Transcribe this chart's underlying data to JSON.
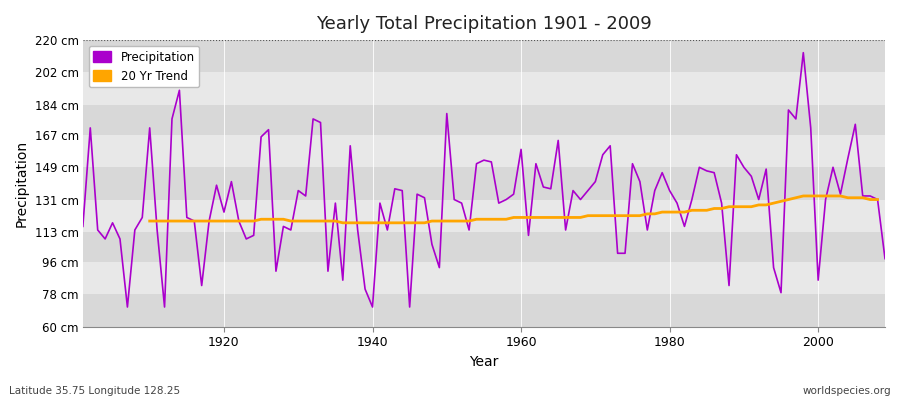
{
  "title": "Yearly Total Precipitation 1901 - 2009",
  "xlabel": "Year",
  "ylabel": "Precipitation",
  "subtitle_left": "Latitude 35.75 Longitude 128.25",
  "subtitle_right": "worldspecies.org",
  "ylim": [
    60,
    220
  ],
  "xlim": [
    1901,
    2009
  ],
  "yticks": [
    60,
    78,
    96,
    113,
    131,
    149,
    167,
    184,
    202,
    220
  ],
  "ytick_labels": [
    "60 cm",
    "78 cm",
    "96 cm",
    "113 cm",
    "131 cm",
    "149 cm",
    "167 cm",
    "184 cm",
    "202 cm",
    "220 cm"
  ],
  "fig_bg_color": "#ffffff",
  "plot_bg_color": "#e0e0e0",
  "band_colors": [
    "#d8d8d8",
    "#e8e8e8"
  ],
  "precip_color": "#aa00cc",
  "trend_color": "#FFA500",
  "precip_linewidth": 1.2,
  "trend_linewidth": 2.0,
  "years": [
    1901,
    1902,
    1903,
    1904,
    1905,
    1906,
    1907,
    1908,
    1909,
    1910,
    1911,
    1912,
    1913,
    1914,
    1915,
    1916,
    1917,
    1918,
    1919,
    1920,
    1921,
    1922,
    1923,
    1924,
    1925,
    1926,
    1927,
    1928,
    1929,
    1930,
    1931,
    1932,
    1933,
    1934,
    1935,
    1936,
    1937,
    1938,
    1939,
    1940,
    1941,
    1942,
    1943,
    1944,
    1945,
    1946,
    1947,
    1948,
    1949,
    1950,
    1951,
    1952,
    1953,
    1954,
    1955,
    1956,
    1957,
    1958,
    1959,
    1960,
    1961,
    1962,
    1963,
    1964,
    1965,
    1966,
    1967,
    1968,
    1969,
    1970,
    1971,
    1972,
    1973,
    1974,
    1975,
    1976,
    1977,
    1978,
    1979,
    1980,
    1981,
    1982,
    1983,
    1984,
    1985,
    1986,
    1987,
    1988,
    1989,
    1990,
    1991,
    1992,
    1993,
    1994,
    1995,
    1996,
    1997,
    1998,
    1999,
    2000,
    2001,
    2002,
    2003,
    2004,
    2005,
    2006,
    2007,
    2008,
    2009
  ],
  "precipitation": [
    116,
    171,
    114,
    109,
    118,
    109,
    71,
    114,
    121,
    171,
    114,
    71,
    176,
    192,
    121,
    119,
    83,
    119,
    139,
    124,
    141,
    119,
    109,
    111,
    166,
    170,
    91,
    116,
    114,
    136,
    133,
    176,
    174,
    91,
    129,
    86,
    161,
    114,
    81,
    71,
    129,
    114,
    137,
    136,
    71,
    134,
    132,
    106,
    93,
    179,
    131,
    129,
    114,
    151,
    153,
    152,
    129,
    131,
    134,
    159,
    111,
    151,
    138,
    137,
    164,
    114,
    136,
    131,
    136,
    141,
    156,
    161,
    101,
    101,
    151,
    141,
    114,
    136,
    146,
    136,
    129,
    116,
    131,
    149,
    147,
    146,
    129,
    83,
    156,
    149,
    144,
    131,
    148,
    93,
    79,
    181,
    176,
    213,
    171,
    86,
    131,
    149,
    134,
    154,
    173,
    133,
    133,
    131,
    98
  ],
  "trend": [
    null,
    null,
    null,
    null,
    null,
    null,
    null,
    null,
    null,
    119,
    119,
    119,
    119,
    119,
    119,
    119,
    119,
    119,
    119,
    119,
    119,
    119,
    119,
    119,
    120,
    120,
    120,
    120,
    119,
    119,
    119,
    119,
    119,
    119,
    119,
    118,
    118,
    118,
    118,
    118,
    118,
    118,
    118,
    118,
    118,
    118,
    118,
    119,
    119,
    119,
    119,
    119,
    119,
    120,
    120,
    120,
    120,
    120,
    121,
    121,
    121,
    121,
    121,
    121,
    121,
    121,
    121,
    121,
    122,
    122,
    122,
    122,
    122,
    122,
    122,
    122,
    123,
    123,
    124,
    124,
    124,
    124,
    125,
    125,
    125,
    126,
    126,
    127,
    127,
    127,
    127,
    128,
    128,
    129,
    130,
    131,
    132,
    133,
    133,
    133,
    133,
    133,
    133,
    132,
    132,
    132,
    131,
    131,
    null
  ]
}
